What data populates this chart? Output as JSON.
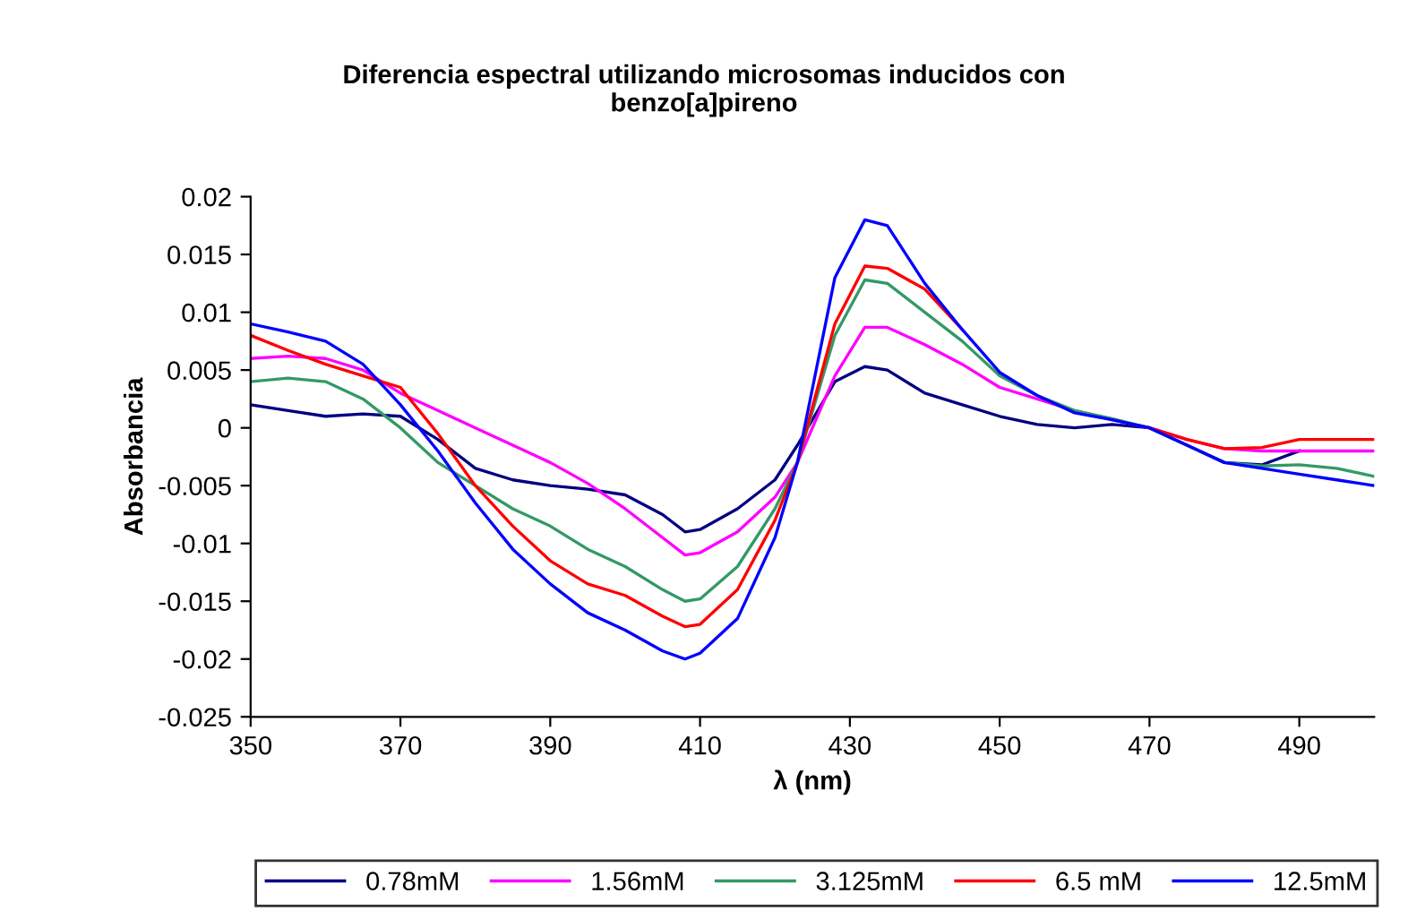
{
  "chart_data": {
    "type": "line",
    "title": "Diferencia espectral utilizando microsomas inducidos con\nbenzo[a]pireno",
    "xlabel": "λ (nm)",
    "ylabel": "Absorbancia",
    "x": [
      350,
      355,
      360,
      365,
      370,
      375,
      380,
      385,
      390,
      395,
      400,
      405,
      408,
      410,
      415,
      420,
      423,
      428,
      432,
      435,
      440,
      445,
      450,
      455,
      460,
      465,
      470,
      475,
      480,
      485,
      490,
      495,
      500
    ],
    "series": [
      {
        "name": "0.78mM",
        "color": "#000080",
        "values": [
          0.002,
          0.0015,
          0.001,
          0.0012,
          0.001,
          -0.001,
          -0.0035,
          -0.0045,
          -0.005,
          -0.0053,
          -0.0058,
          -0.0075,
          -0.009,
          -0.0088,
          -0.007,
          -0.0045,
          -0.0015,
          0.004,
          0.0053,
          0.005,
          0.003,
          0.002,
          0.001,
          0.0003,
          0,
          0.0003,
          0,
          -0.0015,
          -0.003,
          -0.0032,
          -0.002,
          null,
          null
        ]
      },
      {
        "name": "1.56mM",
        "color": "#ff00ff",
        "values": [
          0.006,
          0.0062,
          0.006,
          0.005,
          0.003,
          0.0015,
          0,
          -0.0015,
          -0.003,
          -0.0048,
          -0.007,
          -0.0095,
          -0.011,
          -0.0108,
          -0.009,
          -0.006,
          -0.003,
          0.0045,
          0.0087,
          0.0087,
          0.0072,
          0.0055,
          0.0035,
          0.0025,
          0.0015,
          0.0007,
          0,
          -0.001,
          -0.0018,
          -0.002,
          -0.002,
          -0.002,
          -0.002
        ]
      },
      {
        "name": "3.125mM",
        "color": "#339966",
        "values": [
          0.004,
          0.0043,
          0.004,
          0.0025,
          0,
          -0.003,
          -0.005,
          -0.007,
          -0.0085,
          -0.0105,
          -0.012,
          -0.014,
          -0.015,
          -0.0148,
          -0.012,
          -0.007,
          -0.003,
          0.008,
          0.0128,
          0.0125,
          0.01,
          0.0075,
          0.0045,
          0.0028,
          0.0015,
          0.0008,
          0,
          -0.0015,
          -0.003,
          -0.0033,
          -0.0032,
          -0.0035,
          -0.0042
        ]
      },
      {
        "name": "6.5 mM",
        "color": "#ff0000",
        "values": [
          0.008,
          0.0067,
          0.0055,
          0.0045,
          0.0035,
          -0.0005,
          -0.005,
          -0.0085,
          -0.0115,
          -0.0135,
          -0.0145,
          -0.0163,
          -0.0172,
          -0.017,
          -0.014,
          -0.008,
          -0.003,
          0.009,
          0.014,
          0.0138,
          0.012,
          0.0085,
          null,
          null,
          null,
          null,
          0,
          -0.001,
          -0.0018,
          -0.0017,
          -0.001,
          -0.001,
          -0.001
        ]
      },
      {
        "name": "12.5mM",
        "color": "#0000ff",
        "values": [
          0.009,
          0.0083,
          0.0075,
          0.0055,
          0.002,
          -0.002,
          -0.0065,
          -0.0105,
          -0.0135,
          -0.016,
          -0.0175,
          -0.0193,
          -0.02,
          -0.0195,
          -0.0165,
          -0.0095,
          -0.003,
          0.013,
          0.018,
          0.0175,
          0.0125,
          0.0085,
          0.0048,
          0.0028,
          0.0013,
          0.0007,
          0,
          -0.0015,
          -0.003,
          -0.0035,
          -0.004,
          -0.0045,
          -0.005
        ]
      }
    ],
    "xlim": [
      350,
      500
    ],
    "xticks": [
      350,
      370,
      390,
      410,
      430,
      450,
      470,
      490
    ],
    "ylim": [
      -0.025,
      0.02
    ],
    "yticks": [
      -0.025,
      -0.02,
      -0.015,
      -0.01,
      -0.005,
      0,
      0.005,
      0.01,
      0.015,
      0.02
    ],
    "grid": false,
    "legend": "bottom"
  }
}
